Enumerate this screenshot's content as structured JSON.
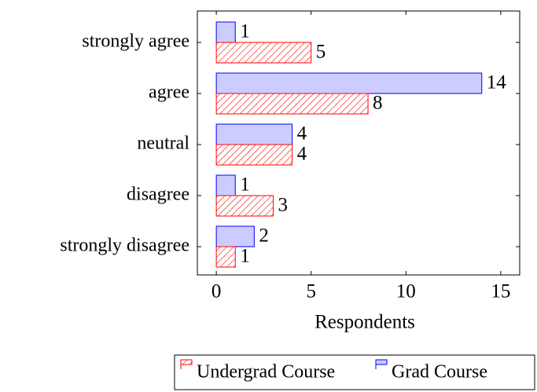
{
  "chart_data": {
    "type": "hbar",
    "categories": [
      "strongly agree",
      "agree",
      "neutral",
      "disagree",
      "strongly disagree"
    ],
    "series": [
      {
        "name": "Undergrad Course",
        "color": "#ff0000",
        "values": [
          5,
          8,
          4,
          3,
          1
        ]
      },
      {
        "name": "Grad Course",
        "color": "#0000ff",
        "values": [
          1,
          14,
          4,
          1,
          2
        ]
      }
    ],
    "xlabel": "Respondents",
    "xlim": [
      -1,
      16
    ],
    "xticks": [
      0,
      5,
      10,
      15
    ]
  }
}
